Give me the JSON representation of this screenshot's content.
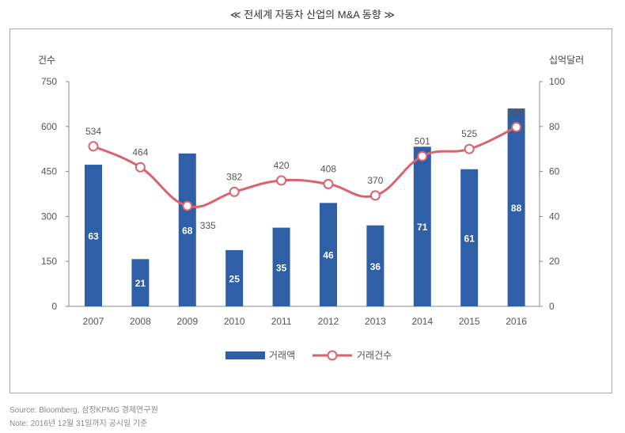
{
  "title": "≪ 전세계 자동차 산업의 M&A 동향 ≫",
  "footnotes": {
    "source": "Source: Bloomberg, 삼정KPMG 경제연구원",
    "note": "Note: 2016년 12월 31일까지 공시일 기준"
  },
  "chart_data": {
    "type": "bar+line",
    "categories": [
      "2007",
      "2008",
      "2009",
      "2010",
      "2011",
      "2012",
      "2013",
      "2014",
      "2015",
      "2016"
    ],
    "left_axis": {
      "label": "건수",
      "range": [
        0,
        750
      ],
      "ticks": [
        0,
        150,
        300,
        450,
        600,
        750
      ]
    },
    "right_axis": {
      "label": "십억달러",
      "range": [
        0,
        100
      ],
      "ticks": [
        0,
        20,
        40,
        60,
        80,
        100
      ]
    },
    "series": [
      {
        "name": "거래액",
        "type": "bar",
        "axis": "right",
        "color": "#2f5fa7",
        "values": [
          63,
          21,
          68,
          25,
          35,
          46,
          36,
          71,
          61,
          88
        ]
      },
      {
        "name": "거래건수",
        "type": "line",
        "axis": "left",
        "color": "#d9636e",
        "values": [
          534,
          464,
          335,
          382,
          420,
          408,
          370,
          501,
          525,
          598
        ]
      }
    ],
    "grid": false,
    "legend": "bottom"
  }
}
